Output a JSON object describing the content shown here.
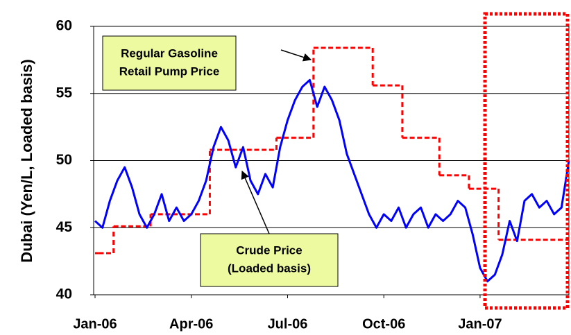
{
  "chart_data": {
    "type": "line",
    "y_label": "Dubai (Yen/L, Loaded basis)",
    "categories": [
      "Jan-06",
      null,
      null,
      null,
      null,
      null,
      null,
      null,
      null,
      null,
      null,
      null,
      null,
      "Apr-06",
      null,
      null,
      null,
      null,
      null,
      null,
      null,
      null,
      null,
      null,
      null,
      null,
      "Jul-06",
      null,
      null,
      null,
      null,
      null,
      null,
      null,
      null,
      null,
      null,
      null,
      null,
      "Oct-06",
      null,
      null,
      null,
      null,
      null,
      null,
      null,
      null,
      null,
      null,
      null,
      null,
      "Jan-07",
      null,
      null,
      null,
      null,
      null,
      null,
      null,
      null,
      null,
      null,
      null,
      null
    ],
    "series": [
      {
        "name": "Crude Price (Loaded basis)",
        "color": "#0000ff",
        "values": [
          45.5,
          45,
          47,
          48.5,
          49.5,
          48,
          46,
          45,
          46,
          47.5,
          45.5,
          46.5,
          45.5,
          46,
          47,
          48.5,
          51,
          52.5,
          51.5,
          49.5,
          51,
          48.5,
          47.5,
          49,
          48,
          51,
          53,
          54.5,
          55.5,
          56,
          54,
          55.5,
          54.5,
          53,
          50.5,
          49,
          47.5,
          46,
          45,
          46,
          45.5,
          46.5,
          45,
          46,
          46.5,
          45,
          46,
          45.5,
          46,
          47,
          46.5,
          44.5,
          42,
          41,
          41.5,
          43,
          45.5,
          44,
          47,
          47.5,
          46.5,
          47,
          46,
          46.5,
          50
        ]
      },
      {
        "name": "Regular Gasoline Retail Pump Price",
        "color": "#ff0000",
        "values": [
          43.1,
          43.1,
          43.1,
          45.1,
          45.1,
          45.1,
          45.1,
          45.1,
          46,
          46,
          46,
          46,
          46,
          46,
          46,
          46,
          50.8,
          50.8,
          50.8,
          50.8,
          50.8,
          50.8,
          50.8,
          50.8,
          50.8,
          51.7,
          51.7,
          51.7,
          51.7,
          51.7,
          58.4,
          58.4,
          58.4,
          58.4,
          58.4,
          58.4,
          58.4,
          58.4,
          55.6,
          55.6,
          55.6,
          55.6,
          51.7,
          51.7,
          51.7,
          51.7,
          51.7,
          48.9,
          48.9,
          48.9,
          48.9,
          47.9,
          47.9,
          47.9,
          47.9,
          44.1,
          44.1,
          44.1,
          44.1,
          44.1,
          44.1,
          44.1,
          44.1,
          44.1,
          44.1
        ]
      }
    ],
    "ylim": [
      40,
      60
    ],
    "yticks": [
      40,
      45,
      50,
      55,
      60
    ],
    "grid": true,
    "annotations": [
      {
        "lines": [
          "Regular Gasoline",
          "Retail Pump Price"
        ]
      },
      {
        "lines": [
          "Crude Price",
          "(Loaded basis)"
        ]
      }
    ]
  }
}
